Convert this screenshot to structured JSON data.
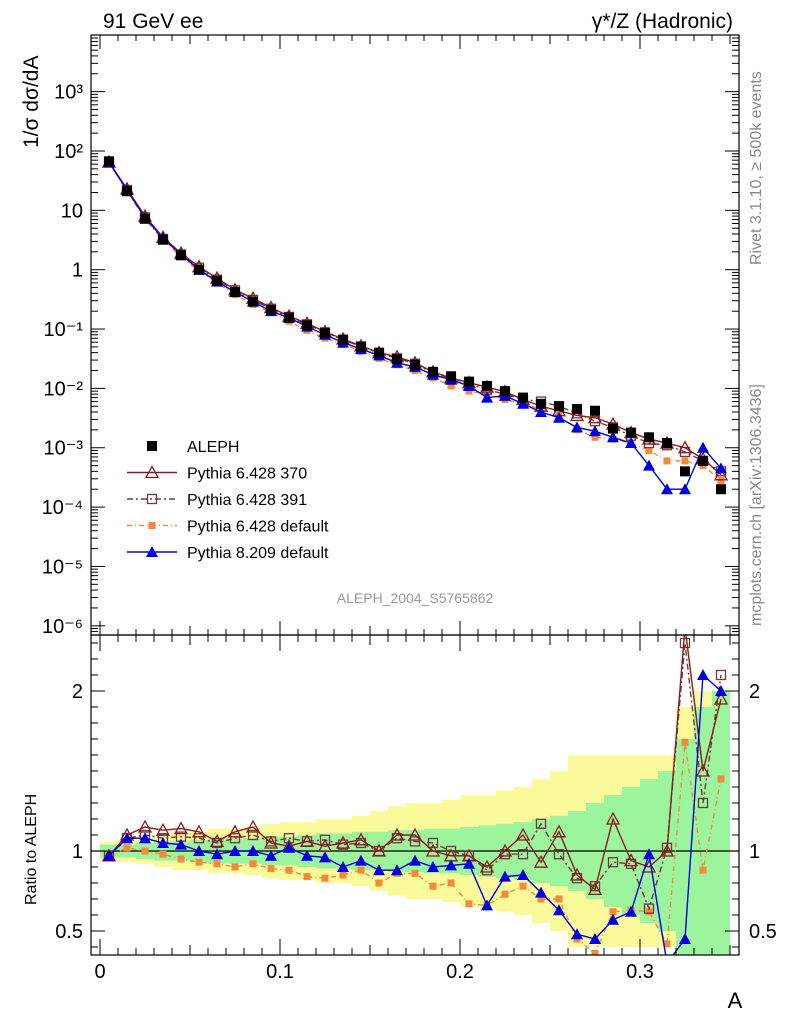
{
  "header": {
    "left": "91 GeV ee",
    "right": "γ*/Z (Hadronic)"
  },
  "side": {
    "rivet": "Rivet 3.1.10, ≥ 500k events",
    "mcplots": "mcplots.cern.ch [arXiv:1306.3436]"
  },
  "analysis_label": "ALEPH_2004_S5765862",
  "colors": {
    "aleph": "#000000",
    "p370": "#8b1a1a",
    "p391": "#6e3a3a",
    "pdef": "#f5883a",
    "p8": "#0000dd",
    "band_inner": "#9cf59c",
    "band_outer": "#fafa9a"
  },
  "chart_data": [
    {
      "type": "scatter",
      "panel": "main",
      "ylabel": "1/σ  dσ/dA",
      "yscale": "log",
      "ylim": [
        7e-07,
        9000
      ],
      "xlim": [
        -0.005,
        0.355
      ],
      "yticks": [
        {
          "v": 1e-06,
          "t": "10⁻⁶"
        },
        {
          "v": 1e-05,
          "t": "10⁻⁵"
        },
        {
          "v": 0.0001,
          "t": "10⁻⁴"
        },
        {
          "v": 0.001,
          "t": "10⁻³"
        },
        {
          "v": 0.01,
          "t": "10⁻²"
        },
        {
          "v": 0.1,
          "t": "10⁻¹"
        },
        {
          "v": 1,
          "t": "1"
        },
        {
          "v": 10,
          "t": "10"
        },
        {
          "v": 100,
          "t": "10²"
        },
        {
          "v": 1000,
          "t": "10³"
        }
      ],
      "x": [
        0.005,
        0.015,
        0.025,
        0.035,
        0.045,
        0.055,
        0.065,
        0.075,
        0.085,
        0.095,
        0.105,
        0.115,
        0.125,
        0.135,
        0.145,
        0.155,
        0.165,
        0.175,
        0.185,
        0.195,
        0.205,
        0.215,
        0.225,
        0.235,
        0.245,
        0.255,
        0.265,
        0.275,
        0.285,
        0.295,
        0.305,
        0.315,
        0.325,
        0.335,
        0.345
      ],
      "series": [
        {
          "name": "ALEPH",
          "key": "aleph",
          "values": [
            67,
            21,
            7.2,
            3.2,
            1.75,
            1.0,
            0.65,
            0.42,
            0.29,
            0.21,
            0.155,
            0.115,
            0.085,
            0.066,
            0.05,
            0.04,
            0.031,
            0.025,
            0.019,
            0.016,
            0.013,
            0.011,
            0.009,
            0.007,
            0.0055,
            0.005,
            0.0045,
            0.0042,
            0.0021,
            0.0018,
            0.0015,
            0.0012,
            0.0004,
            0.0006,
            0.0002
          ]
        },
        {
          "name": "Pythia 6.428 370",
          "key": "p370",
          "values": [
            65,
            23,
            8.0,
            3.5,
            1.9,
            1.12,
            0.72,
            0.46,
            0.33,
            0.23,
            0.165,
            0.125,
            0.09,
            0.068,
            0.052,
            0.04,
            0.034,
            0.027,
            0.019,
            0.015,
            0.0125,
            0.0105,
            0.0088,
            0.0065,
            0.005,
            0.0042,
            0.0035,
            0.0032,
            0.0025,
            0.0018,
            0.0014,
            0.0012,
            0.001,
            0.00065,
            0.00035
          ]
        },
        {
          "name": "Pythia 6.428 391",
          "key": "p391",
          "values": [
            64,
            22,
            7.6,
            3.3,
            1.8,
            1.08,
            0.68,
            0.45,
            0.31,
            0.22,
            0.16,
            0.12,
            0.088,
            0.066,
            0.051,
            0.039,
            0.032,
            0.026,
            0.018,
            0.015,
            0.012,
            0.0095,
            0.008,
            0.0065,
            0.006,
            0.005,
            0.0038,
            0.0028,
            0.0022,
            0.0016,
            0.0012,
            0.0011,
            0.00085,
            0.0006,
            0.0004
          ]
        },
        {
          "name": "Pythia 6.428 default",
          "key": "pdef",
          "values": [
            64,
            21,
            7.1,
            3.1,
            1.65,
            0.95,
            0.6,
            0.38,
            0.26,
            0.19,
            0.135,
            0.095,
            0.07,
            0.055,
            0.042,
            0.032,
            0.025,
            0.02,
            0.015,
            0.011,
            0.009,
            0.008,
            0.0065,
            0.0055,
            0.0045,
            0.0035,
            0.002,
            0.0015,
            0.0014,
            0.0012,
            0.0009,
            0.0006,
            0.0006,
            0.0005,
            0.00028
          ]
        },
        {
          "name": "Pythia 8.209 default",
          "key": "p8",
          "values": [
            65,
            22,
            7.5,
            3.4,
            1.8,
            1.0,
            0.63,
            0.42,
            0.29,
            0.2,
            0.155,
            0.11,
            0.08,
            0.059,
            0.046,
            0.036,
            0.027,
            0.023,
            0.017,
            0.014,
            0.011,
            0.007,
            0.0075,
            0.0055,
            0.004,
            0.0032,
            0.0022,
            0.0019,
            0.0015,
            0.0012,
            0.0005,
            0.0002,
            0.0002,
            0.001,
            0.00045
          ]
        }
      ]
    },
    {
      "type": "line",
      "panel": "ratio",
      "ylabel": "Ratio to ALEPH",
      "xlabel": "A",
      "ylim": [
        0.35,
        2.35
      ],
      "xlim": [
        -0.005,
        0.355
      ],
      "yticks": [
        {
          "v": 0.5,
          "t": "0.5"
        },
        {
          "v": 1,
          "t": "1"
        },
        {
          "v": 2,
          "t": "2"
        }
      ],
      "xticks": [
        {
          "v": 0,
          "t": "0"
        },
        {
          "v": 0.1,
          "t": "0.1"
        },
        {
          "v": 0.2,
          "t": "0.2"
        },
        {
          "v": 0.3,
          "t": "0.3"
        }
      ],
      "x": [
        0.005,
        0.015,
        0.025,
        0.035,
        0.045,
        0.055,
        0.065,
        0.075,
        0.085,
        0.095,
        0.105,
        0.115,
        0.125,
        0.135,
        0.145,
        0.155,
        0.165,
        0.175,
        0.185,
        0.195,
        0.205,
        0.215,
        0.225,
        0.235,
        0.245,
        0.255,
        0.265,
        0.275,
        0.285,
        0.295,
        0.305,
        0.315,
        0.325,
        0.335,
        0.345
      ],
      "band_inner": [
        0.04,
        0.04,
        0.05,
        0.06,
        0.06,
        0.07,
        0.08,
        0.08,
        0.08,
        0.09,
        0.09,
        0.1,
        0.11,
        0.11,
        0.12,
        0.12,
        0.13,
        0.13,
        0.14,
        0.14,
        0.15,
        0.16,
        0.17,
        0.18,
        0.2,
        0.22,
        0.25,
        0.3,
        0.35,
        0.4,
        0.45,
        0.5,
        0.7,
        0.9,
        1.0
      ],
      "band_outer": [
        0.06,
        0.07,
        0.08,
        0.1,
        0.12,
        0.12,
        0.14,
        0.14,
        0.15,
        0.17,
        0.18,
        0.18,
        0.2,
        0.2,
        0.22,
        0.25,
        0.28,
        0.3,
        0.3,
        0.32,
        0.35,
        0.35,
        0.38,
        0.4,
        0.45,
        0.5,
        0.6,
        0.6,
        0.6,
        0.6,
        0.6,
        0.6,
        0.9,
        1.0,
        1.0
      ],
      "series": [
        {
          "name": "Pythia 6.428 370",
          "key": "p370",
          "values": [
            0.97,
            1.1,
            1.15,
            1.13,
            1.14,
            1.12,
            1.06,
            1.12,
            1.15,
            1.05,
            1.03,
            1.06,
            1.03,
            1.05,
            1.07,
            1.0,
            1.1,
            1.1,
            1.0,
            0.97,
            0.97,
            0.9,
            1.0,
            1.1,
            0.93,
            1.12,
            0.85,
            0.76,
            1.2,
            0.94,
            0.9,
            1.0,
            2.4,
            1.5,
            1.95
          ]
        },
        {
          "name": "Pythia 6.428 391",
          "key": "p391",
          "values": [
            0.97,
            1.08,
            1.1,
            1.08,
            1.09,
            1.08,
            1.05,
            1.08,
            1.1,
            1.06,
            1.08,
            1.06,
            1.07,
            1.04,
            1.05,
            1.0,
            1.08,
            1.06,
            1.05,
            1.0,
            0.97,
            0.88,
            0.98,
            0.98,
            1.17,
            0.98,
            0.83,
            0.78,
            0.93,
            0.92,
            0.64,
            1.02,
            2.3,
            1.3,
            2.1
          ]
        },
        {
          "name": "Pythia 6.428 default",
          "key": "pdef",
          "values": [
            0.97,
            1.02,
            1.0,
            0.98,
            0.95,
            0.93,
            0.92,
            0.9,
            0.92,
            0.89,
            0.88,
            0.84,
            0.83,
            0.85,
            0.88,
            0.8,
            0.86,
            0.86,
            0.78,
            0.8,
            0.67,
            0.66,
            0.73,
            0.78,
            0.7,
            0.7,
            0.45,
            0.36,
            0.62,
            0.63,
            0.62,
            0.42,
            1.68,
            0.88,
            1.45
          ]
        },
        {
          "name": "Pythia 8.209 default",
          "key": "p8",
          "values": [
            0.97,
            1.08,
            1.08,
            1.05,
            1.04,
            1.0,
            0.98,
            1.0,
            1.0,
            0.97,
            1.02,
            0.97,
            0.96,
            0.9,
            0.94,
            0.88,
            0.88,
            0.94,
            0.9,
            0.91,
            0.92,
            0.66,
            0.84,
            0.85,
            0.74,
            0.63,
            0.48,
            0.45,
            0.57,
            0.62,
            0.98,
            0.3,
            0.45,
            2.1,
            2.0
          ]
        }
      ]
    }
  ]
}
